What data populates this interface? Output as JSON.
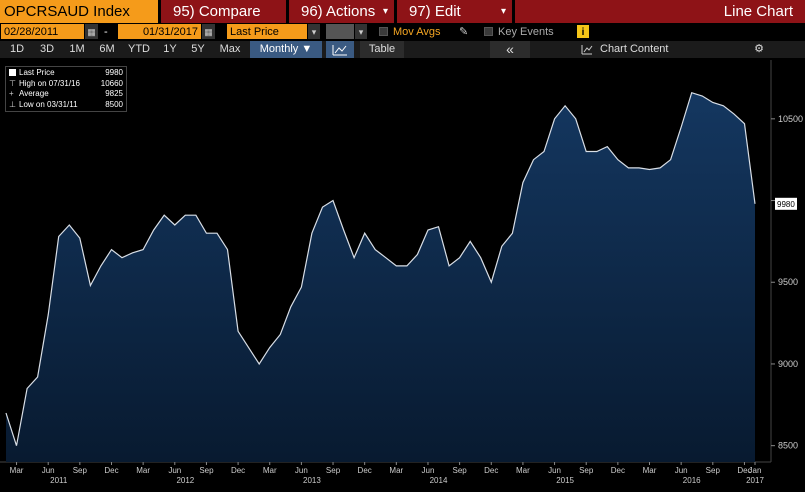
{
  "toolbar": {
    "ticker": "OPCRSAUD Index",
    "compare": "95) Compare",
    "actions": "96) Actions",
    "edit": "97) Edit",
    "chart_type": "Line Chart",
    "dropdown_glyph": "▾"
  },
  "settings": {
    "start_date": "02/28/2011",
    "date_dash": "-",
    "end_date": "01/31/2017",
    "field": "Last Price",
    "mov_avgs": "Mov Avgs",
    "key_events": "Key Events",
    "info": "i"
  },
  "periods": {
    "items": [
      "1D",
      "3D",
      "1M",
      "6M",
      "YTD",
      "1Y",
      "5Y",
      "Max"
    ],
    "frequency": "Monthly ▼",
    "table": "Table",
    "collapse": "«",
    "chart_content": "Chart Content",
    "settings_glyph": "⚙"
  },
  "legend": {
    "last_label": "Last Price",
    "last_value": "9980",
    "high_label": "High on 07/31/16",
    "high_value": "10660",
    "avg_label": "Average",
    "avg_value": "9825",
    "low_label": "Low on 03/31/11",
    "low_value": "8500"
  },
  "colors": {
    "accent": "#f59b1a",
    "function_button": "#8e1317",
    "area_fill_top": "#143760",
    "area_fill_bottom": "#081a30",
    "line": "#d8dee6",
    "last_price_box": "#ffffff"
  },
  "chart_data": {
    "type": "area",
    "title": "OPCRSAUD Index",
    "series": [
      {
        "name": "Last Price",
        "x": [
          "2011-02",
          "2011-03",
          "2011-04",
          "2011-05",
          "2011-06",
          "2011-07",
          "2011-08",
          "2011-09",
          "2011-10",
          "2011-11",
          "2011-12",
          "2012-01",
          "2012-02",
          "2012-03",
          "2012-04",
          "2012-05",
          "2012-06",
          "2012-07",
          "2012-08",
          "2012-09",
          "2012-10",
          "2012-11",
          "2012-12",
          "2013-01",
          "2013-02",
          "2013-03",
          "2013-04",
          "2013-05",
          "2013-06",
          "2013-07",
          "2013-08",
          "2013-09",
          "2013-10",
          "2013-11",
          "2013-12",
          "2014-01",
          "2014-02",
          "2014-03",
          "2014-04",
          "2014-05",
          "2014-06",
          "2014-07",
          "2014-08",
          "2014-09",
          "2014-10",
          "2014-11",
          "2014-12",
          "2015-01",
          "2015-02",
          "2015-03",
          "2015-04",
          "2015-05",
          "2015-06",
          "2015-07",
          "2015-08",
          "2015-09",
          "2015-10",
          "2015-11",
          "2015-12",
          "2016-01",
          "2016-02",
          "2016-03",
          "2016-04",
          "2016-05",
          "2016-06",
          "2016-07",
          "2016-08",
          "2016-09",
          "2016-10",
          "2016-11",
          "2016-12",
          "2017-01"
        ],
        "values": [
          8700,
          8500,
          8850,
          8920,
          9300,
          9780,
          9850,
          9770,
          9480,
          9600,
          9700,
          9650,
          9680,
          9700,
          9820,
          9910,
          9850,
          9910,
          9910,
          9800,
          9800,
          9700,
          9200,
          9100,
          9000,
          9100,
          9180,
          9350,
          9470,
          9800,
          9960,
          10000,
          9820,
          9650,
          9800,
          9700,
          9650,
          9600,
          9600,
          9670,
          9820,
          9840,
          9600,
          9650,
          9750,
          9650,
          9500,
          9720,
          9800,
          10110,
          10250,
          10300,
          10500,
          10580,
          10500,
          10300,
          10300,
          10330,
          10250,
          10200,
          10200,
          10190,
          10200,
          10250,
          10450,
          10660,
          10640,
          10600,
          10580,
          10530,
          10470,
          9980
        ]
      }
    ],
    "x_tick_labels": [
      "Mar",
      "Jun",
      "Sep",
      "Dec",
      "Mar",
      "Jun",
      "Sep",
      "Dec",
      "Mar",
      "Jun",
      "Sep",
      "Dec",
      "Mar",
      "Jun",
      "Sep",
      "Dec",
      "Mar",
      "Jun",
      "Sep",
      "Dec",
      "Mar",
      "Jun",
      "Sep",
      "Dec",
      "Jan"
    ],
    "x_tick_dates": [
      "2011-03",
      "2011-06",
      "2011-09",
      "2011-12",
      "2012-03",
      "2012-06",
      "2012-09",
      "2012-12",
      "2013-03",
      "2013-06",
      "2013-09",
      "2013-12",
      "2014-03",
      "2014-06",
      "2014-09",
      "2014-12",
      "2015-03",
      "2015-06",
      "2015-09",
      "2015-12",
      "2016-03",
      "2016-06",
      "2016-09",
      "2016-12",
      "2017-01"
    ],
    "year_labels": [
      "2011",
      "2012",
      "2013",
      "2014",
      "2015",
      "2016",
      "2017"
    ],
    "year_dates": [
      "2011-07",
      "2012-07",
      "2013-07",
      "2014-07",
      "2015-07",
      "2016-07",
      "2017-01"
    ],
    "y_ticks": [
      8500,
      9000,
      9500,
      10000,
      10500
    ],
    "y_tick_labels": [
      "8500",
      "9000",
      "9500",
      "",
      "10500"
    ],
    "last_value_label": "9980",
    "ylim": [
      8400,
      10860
    ],
    "grid": false,
    "legend_position": "top-left"
  }
}
